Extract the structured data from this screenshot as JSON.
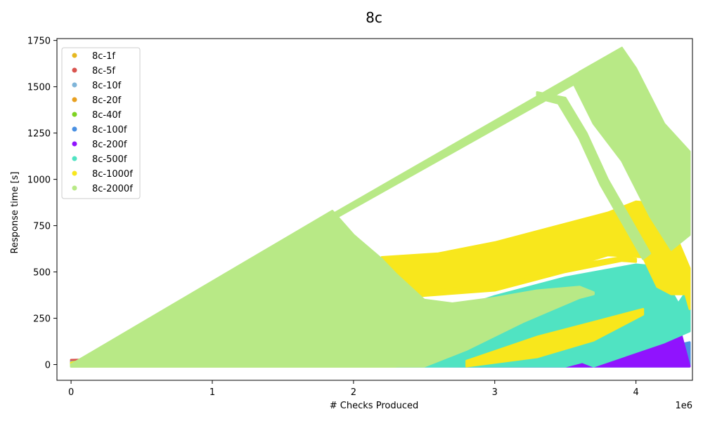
{
  "chart_data": {
    "type": "scatter",
    "title": "8c",
    "xlabel": "# Checks Produced",
    "ylabel": "Response time [s]",
    "x_scale_label": "1e6",
    "xlim": [
      -0.1,
      4.4
    ],
    "ylim": [
      -85,
      1760
    ],
    "x_ticks": [
      0,
      1,
      2,
      3,
      4
    ],
    "y_ticks": [
      0,
      250,
      500,
      750,
      1000,
      1250,
      1500,
      1750
    ],
    "legend_position": "upper-left",
    "series": [
      {
        "name": "8c-1f",
        "color": "#e6b820",
        "bands": [
          {
            "upper": [
              [
                4.3,
                25
              ]
            ],
            "lower": [
              [
                4.3,
                0
              ]
            ]
          }
        ]
      },
      {
        "name": "8c-5f",
        "color": "#d9544f",
        "bands": [
          {
            "upper": [
              [
                0,
                25
              ],
              [
                0.3,
                30
              ],
              [
                4.35,
                20
              ]
            ],
            "lower": [
              [
                0,
                0
              ],
              [
                4.35,
                0
              ]
            ]
          }
        ]
      },
      {
        "name": "8c-10f",
        "color": "#7fb5d9",
        "bands": [
          {
            "upper": [
              [
                0,
                15
              ],
              [
                4.38,
                15
              ]
            ],
            "lower": [
              [
                0,
                0
              ],
              [
                4.38,
                0
              ]
            ]
          }
        ]
      },
      {
        "name": "8c-20f",
        "color": "#e8a020",
        "bands": [
          {
            "upper": [
              [
                4.25,
                0
              ],
              [
                4.38,
                40
              ]
            ],
            "lower": [
              [
                4.25,
                0
              ],
              [
                4.38,
                0
              ]
            ]
          }
        ]
      },
      {
        "name": "8c-40f",
        "color": "#7ed321",
        "bands": [
          {
            "upper": [
              [
                4.2,
                0
              ],
              [
                4.38,
                70
              ]
            ],
            "lower": [
              [
                4.2,
                0
              ],
              [
                4.38,
                0
              ]
            ]
          }
        ]
      },
      {
        "name": "8c-100f",
        "color": "#4a90e2",
        "bands": [
          {
            "upper": [
              [
                0,
                10
              ],
              [
                1.0,
                30
              ],
              [
                1.3,
                70
              ],
              [
                1.5,
                20
              ],
              [
                2.5,
                10
              ],
              [
                3.8,
                20
              ],
              [
                4.38,
                120
              ]
            ],
            "lower": [
              [
                0,
                -10
              ],
              [
                4.38,
                -10
              ]
            ]
          }
        ]
      },
      {
        "name": "8c-200f",
        "color": "#9013fe",
        "bands": [
          {
            "upper": [
              [
                0,
                10
              ],
              [
                1.0,
                40
              ],
              [
                1.2,
                80
              ],
              [
                1.3,
                40
              ],
              [
                2.0,
                30
              ],
              [
                2.5,
                50
              ],
              [
                3.0,
                160
              ],
              [
                3.5,
                260
              ],
              [
                3.9,
                300
              ],
              [
                4.1,
                280
              ],
              [
                4.3,
                220
              ]
            ],
            "lower": [
              [
                0,
                -5
              ],
              [
                3.0,
                -10
              ],
              [
                4.38,
                -10
              ]
            ]
          }
        ]
      },
      {
        "name": "8c-500f",
        "color": "#50e3c2",
        "bands": [
          {
            "upper": [
              [
                0,
                10
              ],
              [
                1.5,
                10
              ],
              [
                2.5,
                200
              ],
              [
                2.8,
                320
              ],
              [
                3.0,
                370
              ],
              [
                3.5,
                470
              ],
              [
                4.0,
                540
              ],
              [
                4.15,
                530
              ],
              [
                4.3,
                330
              ],
              [
                4.38,
                420
              ]
            ],
            "lower": [
              [
                0,
                -10
              ],
              [
                3.5,
                -10
              ],
              [
                3.8,
                50
              ],
              [
                4.2,
                150
              ],
              [
                4.38,
                200
              ]
            ]
          },
          {
            "upper": [
              [
                3.5,
                50
              ],
              [
                4.0,
                250
              ],
              [
                4.2,
                300
              ],
              [
                4.38,
                320
              ]
            ],
            "lower": [
              [
                3.7,
                -10
              ],
              [
                4.2,
                120
              ],
              [
                4.38,
                180
              ]
            ]
          }
        ]
      },
      {
        "name": "8c-1000f",
        "color": "#f8e71c",
        "bands": [
          {
            "upper": [
              [
                0,
                10
              ],
              [
                0.3,
                60
              ],
              [
                0.7,
                50
              ],
              [
                0.9,
                80
              ],
              [
                1.2,
                40
              ],
              [
                2.0,
                20
              ],
              [
                2.2,
                580
              ],
              [
                2.6,
                600
              ],
              [
                3.0,
                660
              ],
              [
                3.5,
                760
              ],
              [
                3.8,
                820
              ],
              [
                4.0,
                880
              ],
              [
                4.15,
                870
              ],
              [
                4.28,
                700
              ],
              [
                4.38,
                520
              ],
              [
                4.38,
                300
              ]
            ],
            "lower": [
              [
                0,
                -10
              ],
              [
                2.3,
                -10
              ],
              [
                2.3,
                380
              ],
              [
                2.6,
                400
              ],
              [
                3.0,
                440
              ],
              [
                3.5,
                520
              ],
              [
                3.8,
                590
              ],
              [
                4.05,
                580
              ],
              [
                4.15,
                420
              ],
              [
                4.25,
                380
              ],
              [
                4.35,
                380
              ]
            ]
          },
          {
            "upper": [
              [
                2.3,
                380
              ],
              [
                3.0,
                430
              ],
              [
                3.5,
                530
              ],
              [
                3.9,
                580
              ],
              [
                4.0,
                570
              ]
            ],
            "lower": [
              [
                2.3,
                360
              ],
              [
                3.0,
                400
              ],
              [
                3.5,
                500
              ],
              [
                3.9,
                560
              ],
              [
                4.0,
                555
              ]
            ]
          },
          {
            "upper": [
              [
                2.8,
                20
              ],
              [
                3.3,
                150
              ],
              [
                3.7,
                230
              ],
              [
                4.05,
                300
              ]
            ],
            "lower": [
              [
                2.8,
                -10
              ],
              [
                3.3,
                40
              ],
              [
                3.7,
                130
              ],
              [
                4.05,
                270
              ]
            ]
          }
        ]
      },
      {
        "name": "8c-2000f",
        "color": "#b8e986",
        "bands": [
          {
            "upper": [
              [
                0,
                0
              ],
              [
                1.85,
                830
              ],
              [
                2.0,
                700
              ],
              [
                2.2,
                570
              ],
              [
                2.3,
                490
              ],
              [
                2.5,
                350
              ],
              [
                2.7,
                330
              ],
              [
                3.0,
                360
              ],
              [
                3.3,
                400
              ],
              [
                3.6,
                420
              ],
              [
                3.7,
                390
              ]
            ],
            "lower": [
              [
                0,
                -10
              ],
              [
                2.5,
                -10
              ],
              [
                2.8,
                80
              ],
              [
                3.2,
                230
              ],
              [
                3.6,
                360
              ],
              [
                3.7,
                380
              ]
            ]
          },
          {
            "upper": [
              [
                0,
                0
              ],
              [
                3.9,
                1710
              ]
            ],
            "lower": [
              [
                0,
                -10
              ],
              [
                3.6,
                1530
              ]
            ]
          },
          {
            "upper": [
              [
                3.6,
                1580
              ],
              [
                3.9,
                1710
              ],
              [
                4.0,
                1600
              ],
              [
                4.2,
                1300
              ],
              [
                4.38,
                1150
              ],
              [
                4.38,
                700
              ]
            ],
            "lower": [
              [
                3.55,
                1530
              ],
              [
                3.7,
                1300
              ],
              [
                3.9,
                1100
              ],
              [
                4.1,
                800
              ],
              [
                4.25,
                620
              ],
              [
                4.38,
                700
              ]
            ]
          },
          {
            "upper": [
              [
                3.3,
                1470
              ],
              [
                3.5,
                1440
              ],
              [
                3.65,
                1250
              ],
              [
                3.8,
                1000
              ],
              [
                3.95,
                800
              ],
              [
                4.1,
                600
              ]
            ],
            "lower": [
              [
                3.3,
                1440
              ],
              [
                3.45,
                1410
              ],
              [
                3.6,
                1220
              ],
              [
                3.75,
                970
              ],
              [
                3.9,
                770
              ],
              [
                4.05,
                570
              ]
            ]
          }
        ]
      }
    ]
  }
}
